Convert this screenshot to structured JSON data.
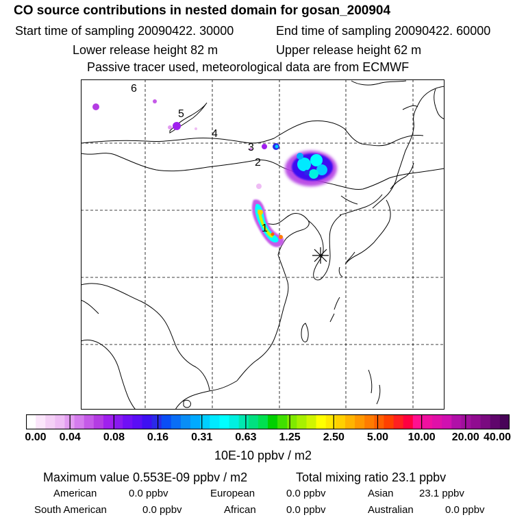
{
  "title": "CO  source contributions in nested domain for gosan_200904",
  "start_time": "Start time of sampling 20090422. 30000",
  "end_time": "End time of sampling 20090422. 60000",
  "lower_release": "Lower release height   82 m",
  "upper_release": "Upper release height   62 m",
  "tracer_note": "Passive tracer used, meteorological data are from ECMWF",
  "map": {
    "labels": [
      "6",
      "5",
      "4",
      "3",
      "2",
      "1"
    ],
    "receptor_marker": "asterisk-marker"
  },
  "colorbar": {
    "ticks": [
      "0.00",
      "0.04",
      "0.08",
      "0.16",
      "0.31",
      "0.63",
      "1.25",
      "2.50",
      "5.00",
      "10.00",
      "20.00",
      "40.00"
    ],
    "unit": "10E-10 ppbv / m2",
    "colors": [
      "#ffffff",
      "#fbe6fb",
      "#f4d0f6",
      "#eebcf4",
      "#e39cf1",
      "#d57ced",
      "#c55ae8",
      "#b43ce3",
      "#a020ee",
      "#8a1af0",
      "#7010f5",
      "#5a0ef5",
      "#3e10f2",
      "#2a2ae8",
      "#0a4ef5",
      "#0a6ef5",
      "#0a8ef5",
      "#00aaff",
      "#00cfff",
      "#00eaff",
      "#00ffff",
      "#00f0e0",
      "#00e8b0",
      "#00e080",
      "#00e050",
      "#00d000",
      "#40e000",
      "#80ea00",
      "#a8f000",
      "#d0f500",
      "#ffff00",
      "#ffe800",
      "#ffd000",
      "#ffb400",
      "#ff9800",
      "#ff7c00",
      "#ff6000",
      "#ff4000",
      "#ff2020",
      "#ff0040",
      "#ff1090",
      "#f010a0",
      "#e010a8",
      "#d010b0",
      "#b010a8",
      "#a0109c",
      "#900c90",
      "#7a0a80",
      "#60066c",
      "#480458"
    ]
  },
  "summary": {
    "max_value": "Maximum value  0.553E-09 ppbv / m2",
    "total_mixing": "Total mixing ratio       23.1 ppbv"
  },
  "regions": [
    {
      "name": "American",
      "value": "0.0 ppbv"
    },
    {
      "name": "European",
      "value": "0.0 ppbv"
    },
    {
      "name": "Asian",
      "value": "23.1 ppbv"
    },
    {
      "name": "South American",
      "value": "0.0 ppbv"
    },
    {
      "name": "African",
      "value": "0.0 ppbv"
    },
    {
      "name": "Australian",
      "value": "0.0 ppbv"
    }
  ]
}
